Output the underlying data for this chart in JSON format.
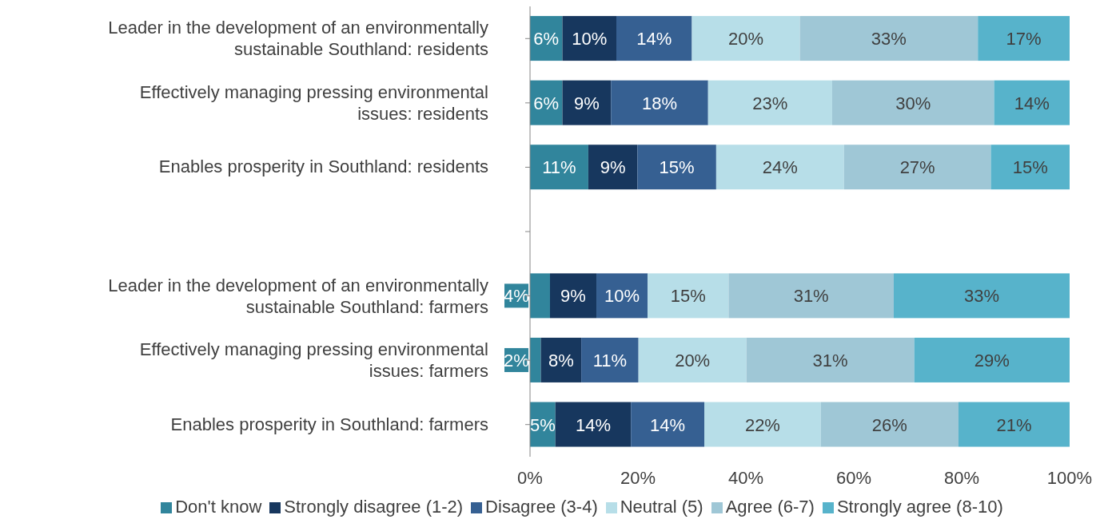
{
  "chart_data": {
    "type": "bar",
    "orientation": "horizontal",
    "stacked": true,
    "categories": [
      "Leader in the development of an environmentally sustainable Southland: residents",
      "Effectively managing pressing environmental issues: residents",
      "Enables prosperity in Southland: residents",
      null,
      "Leader in the development of an environmentally sustainable Southland: farmers",
      "Effectively managing pressing environmental issues: farmers",
      "Enables prosperity in Southland: farmers"
    ],
    "series": [
      {
        "name": "Don't know",
        "color": "#31859c",
        "values": [
          6,
          6,
          10.8,
          null,
          3.7,
          2,
          4.7
        ],
        "value_labels": [
          "6%",
          "6%",
          "11%",
          null,
          "4%",
          "2%",
          "5%"
        ]
      },
      {
        "name": "Strongly disagree (1-2)",
        "color": "#17375e",
        "values": [
          10,
          9,
          9.1,
          null,
          8.6,
          7.5,
          14
        ],
        "value_labels": [
          "10%",
          "9%",
          "9%",
          null,
          "9%",
          "8%",
          "14%"
        ]
      },
      {
        "name": "Disagree (3-4)",
        "color": "#366092",
        "values": [
          14,
          18,
          14.6,
          null,
          9.5,
          10.6,
          13.6
        ],
        "value_labels": [
          "14%",
          "18%",
          "15%",
          null,
          "10%",
          "11%",
          "14%"
        ]
      },
      {
        "name": "Neutral (5)",
        "color": "#b7dee8",
        "values": [
          20,
          23,
          23.7,
          null,
          15,
          20,
          21.6
        ],
        "value_labels": [
          "20%",
          "23%",
          "24%",
          null,
          "15%",
          "20%",
          "22%"
        ]
      },
      {
        "name": "Agree (6-7)",
        "color": "#9fc7d6",
        "values": [
          33,
          30,
          27.2,
          null,
          30.6,
          31.1,
          25.5
        ],
        "value_labels": [
          "33%",
          "30%",
          "27%",
          null,
          "31%",
          "31%",
          "26%"
        ]
      },
      {
        "name": "Strongly agree (8-10)",
        "color": "#57b3cb",
        "values": [
          17,
          14,
          14.6,
          null,
          32.6,
          28.8,
          20.6
        ],
        "value_labels": [
          "17%",
          "14%",
          "15%",
          null,
          "33%",
          "29%",
          "21%"
        ]
      }
    ],
    "xlim": [
      0,
      100
    ],
    "xticks": [
      {
        "value": 0,
        "label": "0%"
      },
      {
        "value": 20,
        "label": "20%"
      },
      {
        "value": 40,
        "label": "40%"
      },
      {
        "value": 60,
        "label": "60%"
      },
      {
        "value": 80,
        "label": "80%"
      },
      {
        "value": 100,
        "label": "100%"
      }
    ],
    "grid": false,
    "legend": "bottom"
  }
}
